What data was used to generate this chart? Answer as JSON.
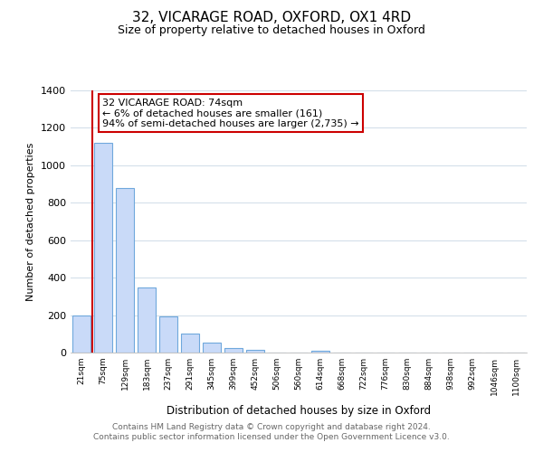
{
  "title": "32, VICARAGE ROAD, OXFORD, OX1 4RD",
  "subtitle": "Size of property relative to detached houses in Oxford",
  "xlabel": "Distribution of detached houses by size in Oxford",
  "ylabel": "Number of detached properties",
  "bar_labels": [
    "21sqm",
    "75sqm",
    "129sqm",
    "183sqm",
    "237sqm",
    "291sqm",
    "345sqm",
    "399sqm",
    "452sqm",
    "506sqm",
    "560sqm",
    "614sqm",
    "668sqm",
    "722sqm",
    "776sqm",
    "830sqm",
    "884sqm",
    "938sqm",
    "992sqm",
    "1046sqm",
    "1100sqm"
  ],
  "bar_heights": [
    200,
    1120,
    880,
    350,
    195,
    100,
    55,
    25,
    15,
    0,
    0,
    10,
    0,
    0,
    0,
    0,
    0,
    0,
    0,
    0,
    0
  ],
  "highlight_bar_index": 1,
  "bar_color": "#c9daf8",
  "highlight_bar_color": "#c9daf8",
  "highlight_bar_edge_color": "#6fa8dc",
  "normal_bar_edge_color": "#6fa8dc",
  "vline_color": "#cc0000",
  "vline_x": 0.5,
  "ylim": [
    0,
    1400
  ],
  "yticks": [
    0,
    200,
    400,
    600,
    800,
    1000,
    1200,
    1400
  ],
  "annotation_title": "32 VICARAGE ROAD: 74sqm",
  "annotation_line1": "← 6% of detached houses are smaller (161)",
  "annotation_line2": "94% of semi-detached houses are larger (2,735) →",
  "annotation_box_color": "#ffffff",
  "annotation_box_edge_color": "#cc0000",
  "footer_line1": "Contains HM Land Registry data © Crown copyright and database right 2024.",
  "footer_line2": "Contains public sector information licensed under the Open Government Licence v3.0.",
  "background_color": "#ffffff",
  "grid_color": "#d0dce8"
}
